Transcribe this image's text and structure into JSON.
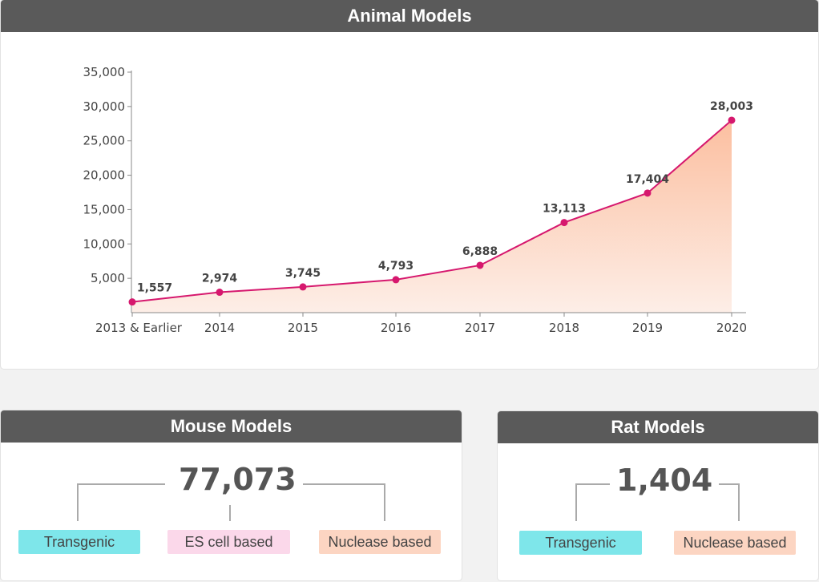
{
  "animal": {
    "title": "Animal Models"
  },
  "chart_data": {
    "type": "area",
    "title": "Animal Models",
    "categories": [
      "2013 & Earlier",
      "2014",
      "2015",
      "2016",
      "2017",
      "2018",
      "2019",
      "2020"
    ],
    "values": [
      1557,
      2974,
      3745,
      4793,
      6888,
      13113,
      17404,
      28003
    ],
    "data_labels": [
      "1,557",
      "2,974",
      "3,745",
      "4,793",
      "6,888",
      "13,113",
      "17,404",
      "28,003"
    ],
    "y_ticks": [
      5000,
      10000,
      15000,
      20000,
      25000,
      30000,
      35000
    ],
    "y_tick_labels": [
      "5,000",
      "10,000",
      "15,000",
      "20,000",
      "25,000",
      "30,000",
      "35,000"
    ],
    "ylim": [
      0,
      35000
    ],
    "grid": false,
    "line_color": "#d6186e",
    "fill_top_color": "#fcbfa0",
    "fill_bottom_color": "#fdeee7"
  },
  "mouse": {
    "title": "Mouse Models",
    "total": "77,073",
    "tags": [
      "Transgenic",
      "ES cell based",
      "Nuclease based"
    ]
  },
  "rat": {
    "title": "Rat Models",
    "total": "1,404",
    "tags": [
      "Transgenic",
      "Nuclease based"
    ]
  },
  "colors": {
    "header_bg": "#5a5a5a",
    "transgenic": "#7ee6ea",
    "es_cell": "#fbd8ea",
    "nuclease": "#fcd5c2"
  }
}
